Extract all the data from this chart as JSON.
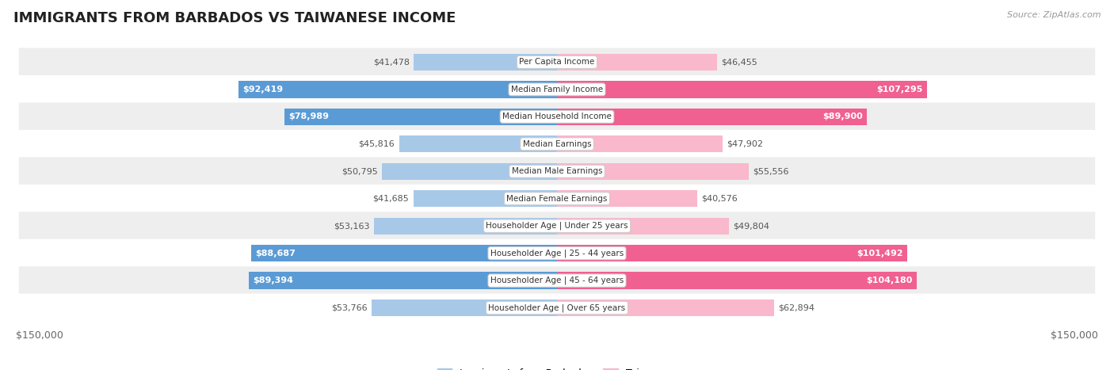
{
  "title": "IMMIGRANTS FROM BARBADOS VS TAIWANESE INCOME",
  "source": "Source: ZipAtlas.com",
  "categories": [
    "Per Capita Income",
    "Median Family Income",
    "Median Household Income",
    "Median Earnings",
    "Median Male Earnings",
    "Median Female Earnings",
    "Householder Age | Under 25 years",
    "Householder Age | 25 - 44 years",
    "Householder Age | 45 - 64 years",
    "Householder Age | Over 65 years"
  ],
  "barbados_values": [
    41478,
    92419,
    78989,
    45816,
    50795,
    41685,
    53163,
    88687,
    89394,
    53766
  ],
  "taiwanese_values": [
    46455,
    107295,
    89900,
    47902,
    55556,
    40576,
    49804,
    101492,
    104180,
    62894
  ],
  "max_value": 150000,
  "bar_color_barbados_light": "#a8c8e8",
  "bar_color_barbados_dark": "#5b9bd5",
  "bar_color_taiwanese_light": "#f9b8cc",
  "bar_color_taiwanese_dark": "#f06090",
  "row_bg_color": "#eeeeee",
  "row_bg_white": "#ffffff",
  "title_fontsize": 13,
  "source_fontsize": 8,
  "bar_label_fontsize": 8,
  "cat_label_fontsize": 7.5,
  "tick_fontsize": 9,
  "tick_label": "$150,000",
  "legend_barbados": "Immigrants from Barbados",
  "legend_taiwanese": "Taiwanese",
  "dark_threshold": 75000
}
